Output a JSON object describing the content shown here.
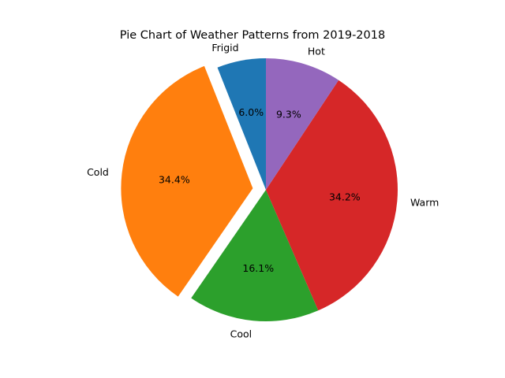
{
  "chart_data": {
    "type": "pie",
    "title": "Pie Chart of Weather Patterns from 2019-2018",
    "start_angle_deg": 90,
    "direction": "counterclockwise",
    "slices": [
      {
        "label": "Frigid",
        "value": 6.0,
        "pct_label": "6.0%",
        "color": "#1f77b4",
        "exploded": false
      },
      {
        "label": "Cold",
        "value": 34.4,
        "pct_label": "34.4%",
        "color": "#ff7f0e",
        "exploded": true
      },
      {
        "label": "Cool",
        "value": 16.1,
        "pct_label": "16.1%",
        "color": "#2ca02c",
        "exploded": false
      },
      {
        "label": "Warm",
        "value": 34.2,
        "pct_label": "34.2%",
        "color": "#d62728",
        "exploded": false
      },
      {
        "label": "Hot",
        "value": 9.3,
        "pct_label": "9.3%",
        "color": "#9467bd",
        "exploded": false
      }
    ]
  }
}
